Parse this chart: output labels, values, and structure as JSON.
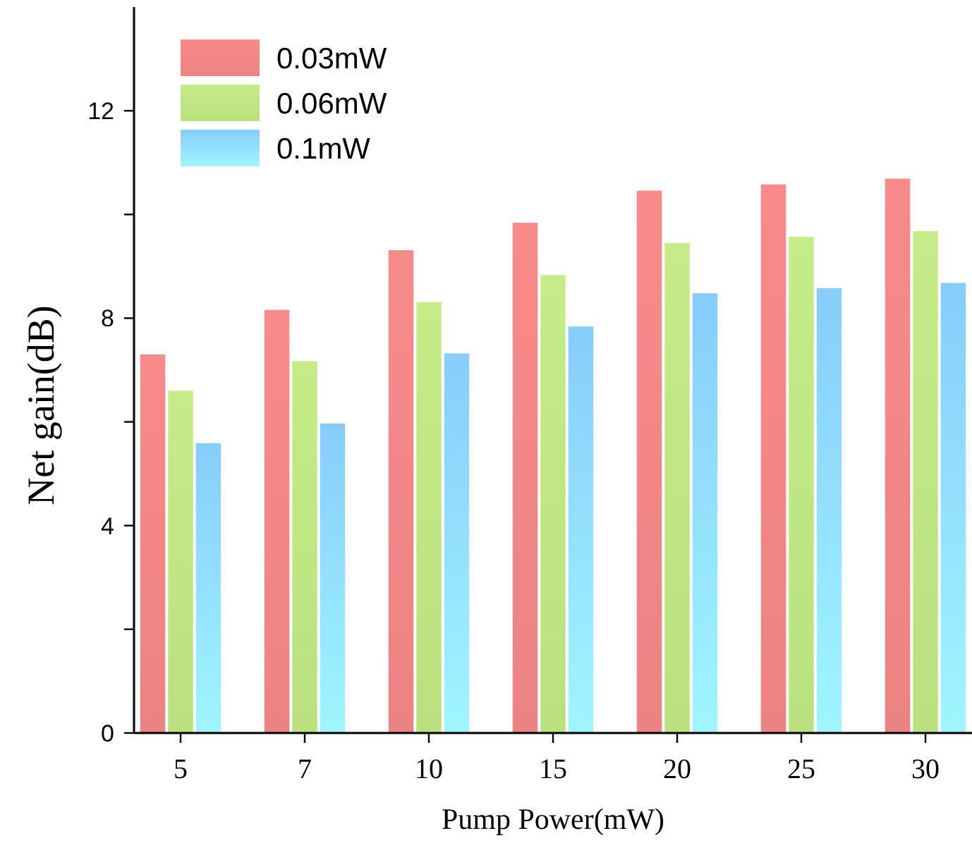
{
  "chart_data": {
    "type": "bar",
    "xlabel": "Pump Power(mW)",
    "ylabel": "Net gain(dB)",
    "categories": [
      "5",
      "7",
      "10",
      "15",
      "20",
      "25",
      "30"
    ],
    "series": [
      {
        "name": "0.03mW",
        "color": "#f98a8a",
        "values": [
          7.3,
          8.16,
          9.31,
          9.84,
          10.46,
          10.58,
          10.69
        ]
      },
      {
        "name": "0.06mW",
        "color": "#c5ec88",
        "values": [
          6.6,
          7.17,
          8.31,
          8.83,
          9.45,
          9.57,
          9.68
        ]
      },
      {
        "name": "0.1mW",
        "color": "#86cdfb",
        "values": [
          5.59,
          5.97,
          7.32,
          7.84,
          8.48,
          8.58,
          8.68
        ]
      }
    ],
    "ylim": [
      0,
      14
    ],
    "yticks": [
      0,
      {
        "value": 2,
        "label": null
      },
      4,
      {
        "value": 6,
        "label": null
      },
      8,
      {
        "value": 10,
        "label": null
      },
      12
    ],
    "grid": false,
    "legend": "top left"
  }
}
